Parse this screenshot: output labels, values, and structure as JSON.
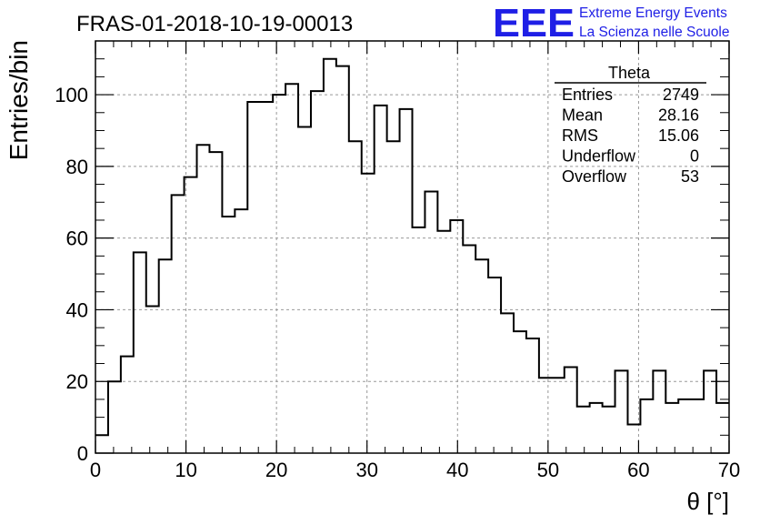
{
  "chart_data": {
    "type": "bar",
    "title": "FRAS-01-2018-10-19-00013",
    "xlabel": "θ [°]",
    "ylabel": "Entries/bin",
    "xlim": [
      0,
      70
    ],
    "ylim": [
      0,
      115
    ],
    "xticks": [
      "0",
      "10",
      "20",
      "30",
      "40",
      "50",
      "60",
      "70"
    ],
    "yticks": [
      "0",
      "20",
      "40",
      "60",
      "80",
      "100"
    ],
    "grid": true,
    "bin_width": 1.4,
    "values": [
      5,
      20,
      27,
      56,
      41,
      54,
      72,
      77,
      86,
      84,
      66,
      68,
      98,
      98,
      100,
      103,
      91,
      101,
      110,
      108,
      87,
      78,
      97,
      87,
      96,
      63,
      73,
      62,
      65,
      58,
      54,
      49,
      39,
      34,
      32,
      21,
      21,
      24,
      13,
      14,
      13,
      23,
      8,
      15,
      23,
      14,
      15,
      15,
      23,
      14
    ],
    "stats_box": {
      "title": "Theta",
      "rows": [
        {
          "label": "Entries",
          "value": "2749"
        },
        {
          "label": "Mean",
          "value": "28.16"
        },
        {
          "label": "RMS",
          "value": "15.06"
        },
        {
          "label": "Underflow",
          "value": "0"
        },
        {
          "label": "Overflow",
          "value": "53"
        }
      ]
    },
    "logo": {
      "mark": "EEE",
      "line1": "Extreme Energy Events",
      "line2": "La Scienza nelle Scuole",
      "color": "#1f1fe6"
    }
  }
}
